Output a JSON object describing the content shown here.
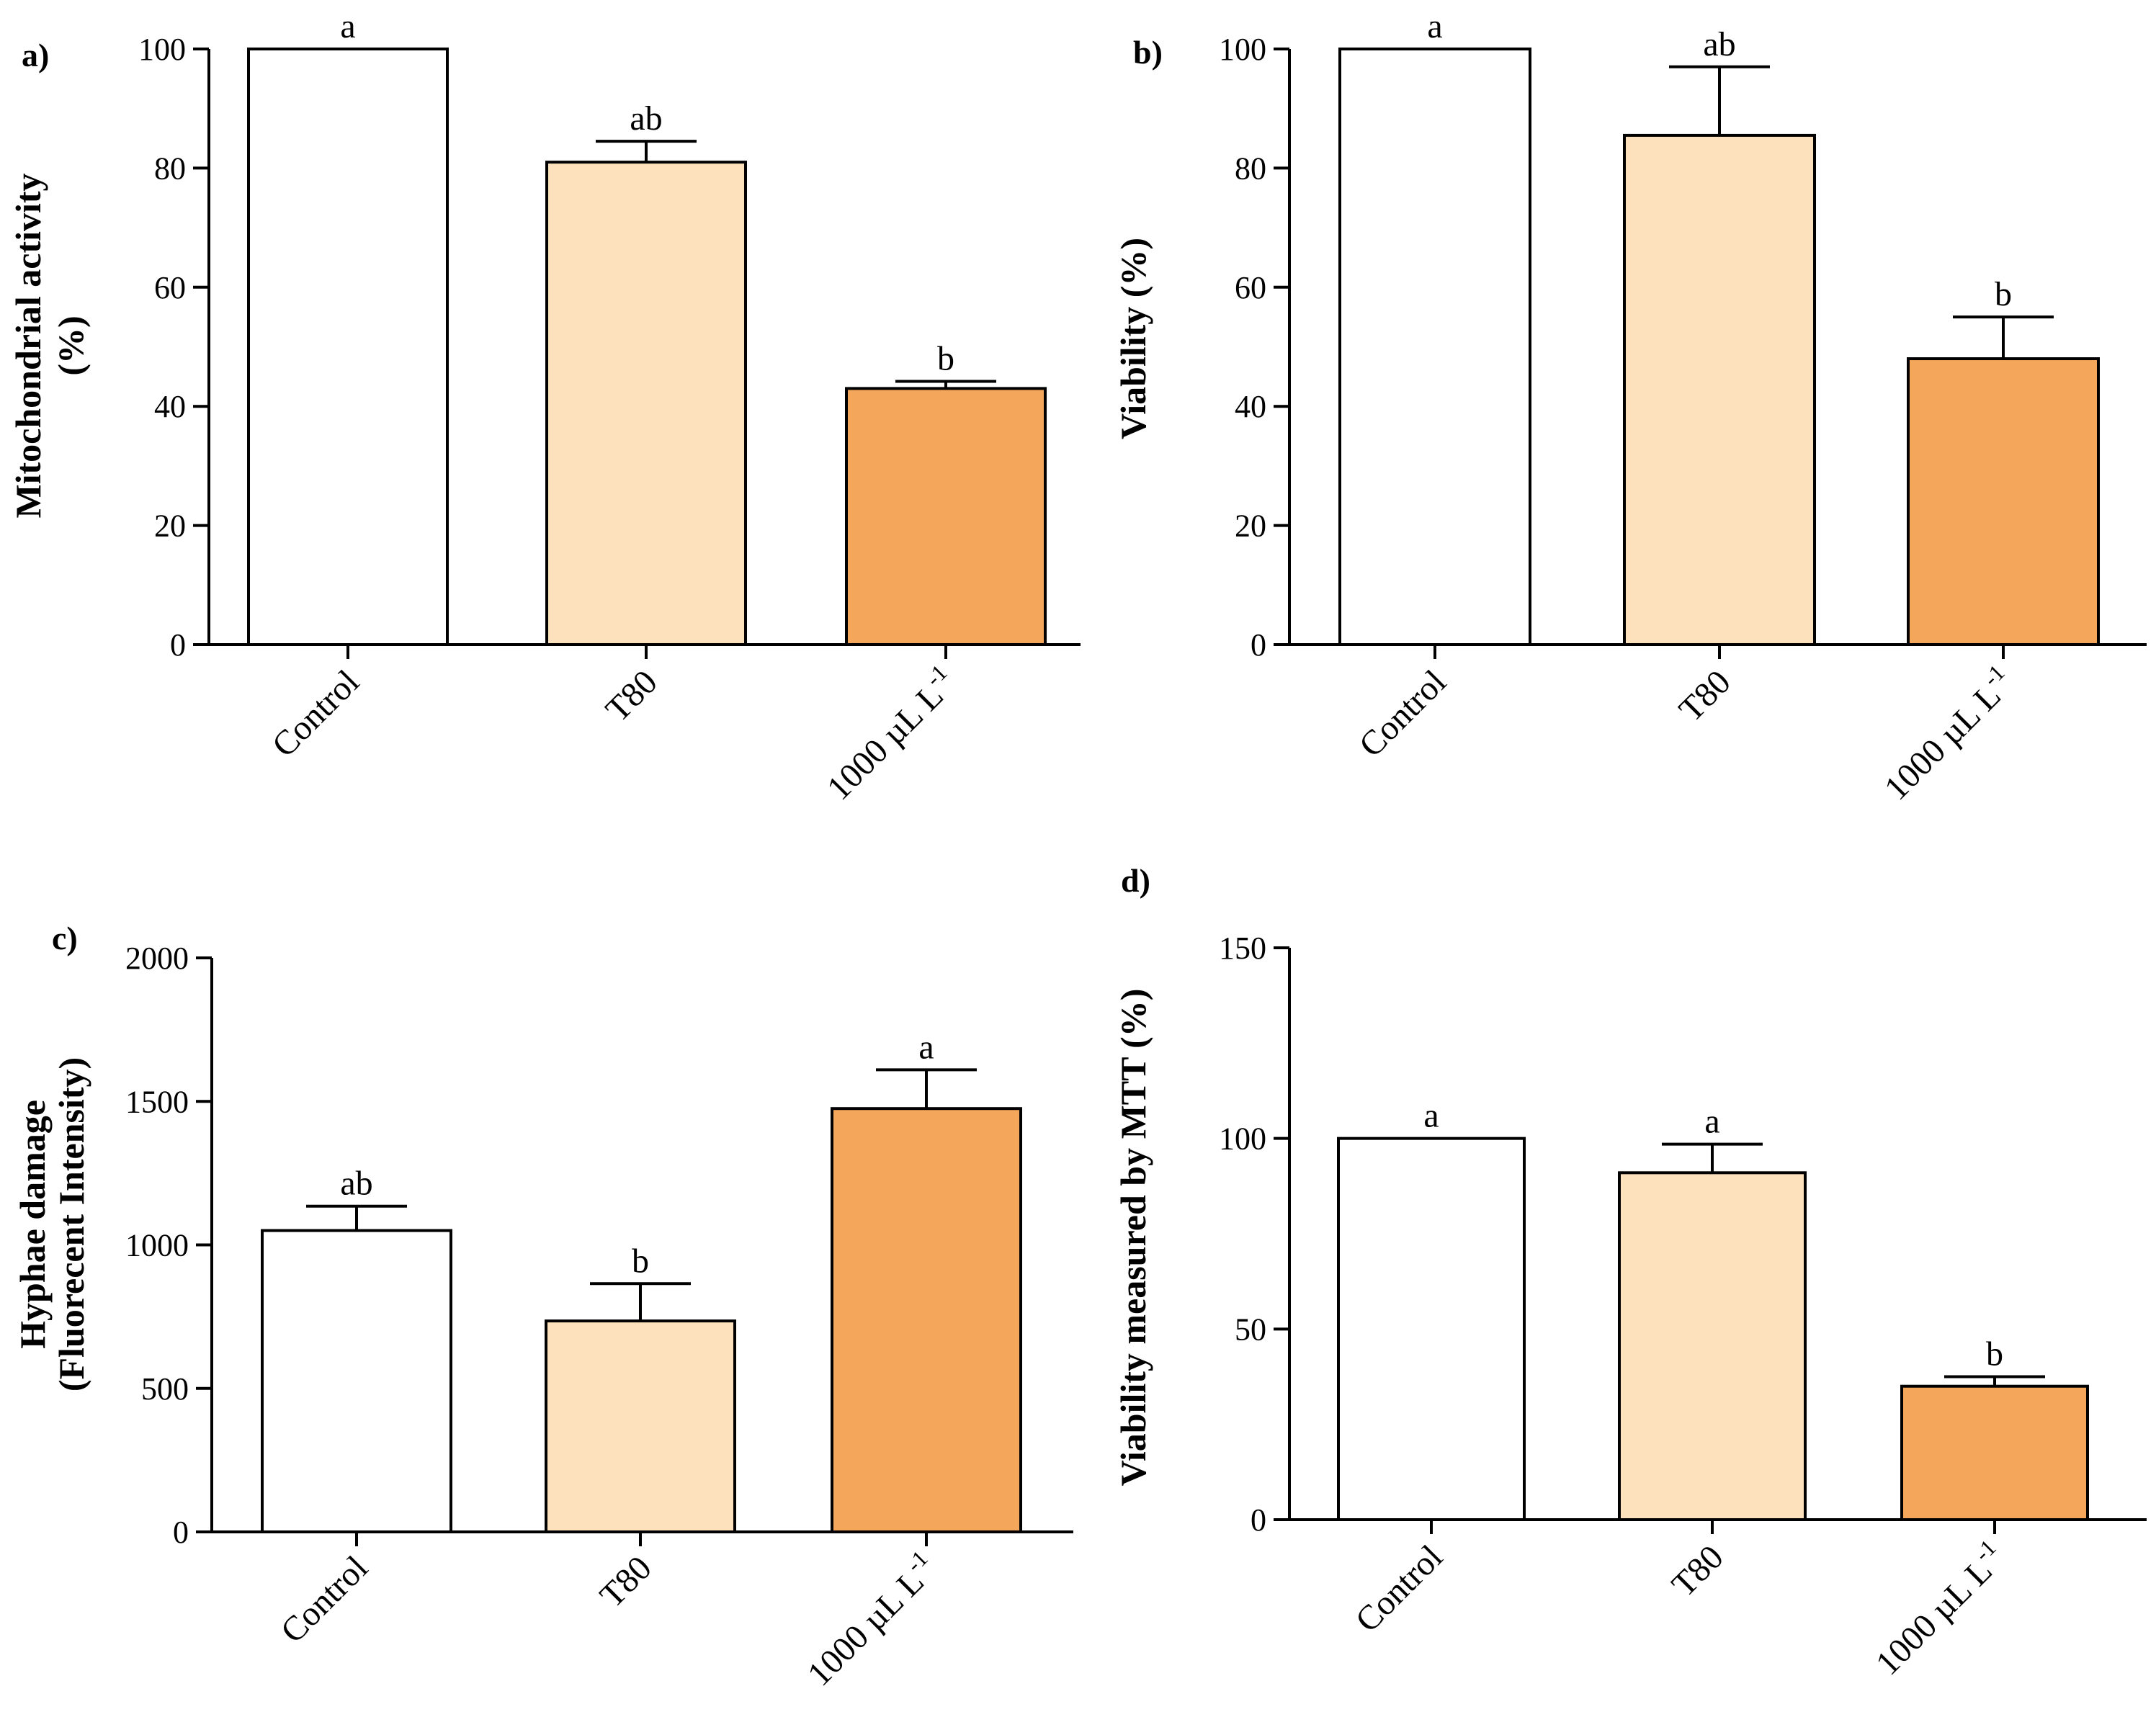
{
  "colors": {
    "control": "#ffffff",
    "t80": "#fde0bc",
    "dose": "#f4a65a",
    "stroke": "#000000"
  },
  "chart_data": [
    {
      "type": "bar",
      "panel": "a)",
      "ylabel_lines": [
        "Mitochondrial activity",
        "(%)"
      ],
      "categories": [
        "Control",
        "T80",
        "1000  µL L"
      ],
      "category_superscripts": [
        "",
        "",
        "-1"
      ],
      "values": [
        100,
        81,
        43
      ],
      "errors": [
        0,
        3.5,
        1.2
      ],
      "significance": [
        "a",
        "ab",
        "b"
      ],
      "yticks": [
        0,
        20,
        40,
        60,
        80,
        100
      ],
      "ylim": [
        0,
        100
      ]
    },
    {
      "type": "bar",
      "panel": "b)",
      "ylabel_lines": [
        "Viability (%)"
      ],
      "categories": [
        "Control",
        "T80",
        "1000  µL L"
      ],
      "category_superscripts": [
        "",
        "",
        "-1"
      ],
      "values": [
        100,
        85.5,
        48
      ],
      "errors": [
        0,
        11.5,
        7
      ],
      "significance": [
        "a",
        "ab",
        "b"
      ],
      "yticks": [
        0,
        20,
        40,
        60,
        80,
        100
      ],
      "ylim": [
        0,
        100
      ]
    },
    {
      "type": "bar",
      "panel": "c)",
      "ylabel_lines": [
        "Hyphae damage",
        "(Fluorecent Intensity)"
      ],
      "categories": [
        "Control",
        "T80",
        "1000  µL L"
      ],
      "category_superscripts": [
        "",
        "",
        "-1"
      ],
      "values": [
        1050,
        735,
        1475
      ],
      "errors": [
        85,
        130,
        135
      ],
      "significance": [
        "ab",
        "b",
        "a"
      ],
      "yticks": [
        0,
        500,
        1000,
        1500,
        2000
      ],
      "ylim": [
        0,
        2000
      ]
    },
    {
      "type": "bar",
      "panel": "d)",
      "ylabel_lines": [
        "Viability measured by MTT (%)"
      ],
      "categories": [
        "Control",
        "T80",
        "1000  µL L"
      ],
      "category_superscripts": [
        "",
        "",
        "-1"
      ],
      "values": [
        100,
        91,
        35
      ],
      "errors": [
        0,
        7.5,
        2.5
      ],
      "significance": [
        "a",
        "a",
        "b"
      ],
      "yticks": [
        0,
        50,
        100,
        150
      ],
      "ylim": [
        0,
        150
      ]
    }
  ]
}
